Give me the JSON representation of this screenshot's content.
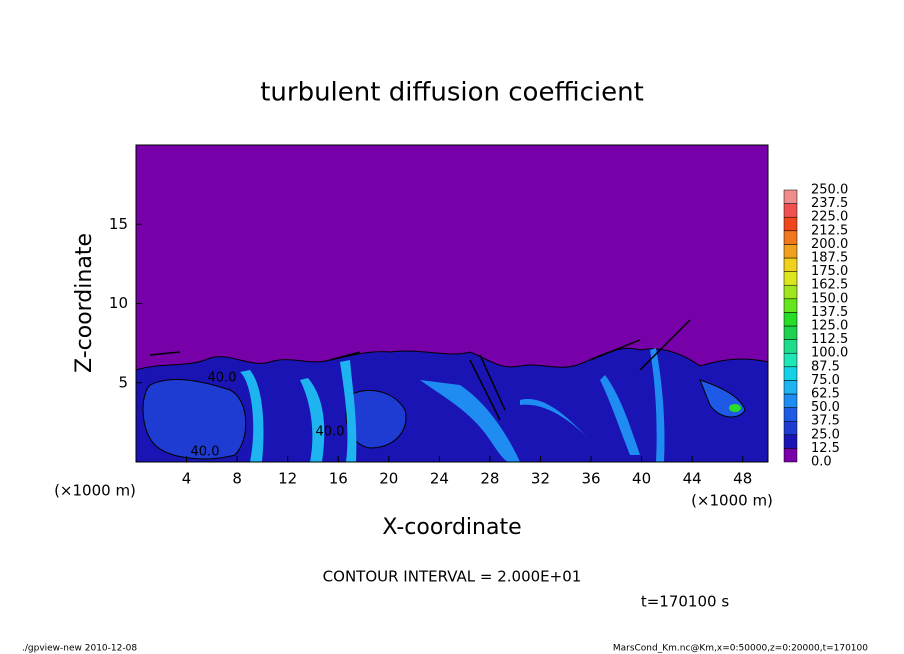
{
  "chart_data": {
    "type": "contour",
    "title": "turbulent diffusion coefficient",
    "x_label": "X-coordinate",
    "y_label": "Z-coordinate",
    "x_unit": "(×1000 m)",
    "y_unit": "(×1000 m)",
    "xlim": [
      0,
      50
    ],
    "ylim": [
      0,
      20
    ],
    "xticks": [
      4,
      8,
      12,
      16,
      20,
      24,
      28,
      32,
      36,
      40,
      44,
      48
    ],
    "yticks": [
      5,
      10,
      15
    ],
    "levels": [
      {
        "value": 0,
        "label": "0.0"
      },
      {
        "value": 12.5,
        "label": "12.5"
      },
      {
        "value": 25,
        "label": "25.0"
      },
      {
        "value": 37.5,
        "label": "37.5"
      },
      {
        "value": 50,
        "label": "50.0"
      },
      {
        "value": 62.5,
        "label": "62.5"
      },
      {
        "value": 75,
        "label": "75.0"
      },
      {
        "value": 87.5,
        "label": "87.5"
      },
      {
        "value": 100,
        "label": "100.0"
      },
      {
        "value": 112.5,
        "label": "112.5"
      },
      {
        "value": 125,
        "label": "125.0"
      },
      {
        "value": 137.5,
        "label": "137.5"
      },
      {
        "value": 150,
        "label": "150.0"
      },
      {
        "value": 162.5,
        "label": "162.5"
      },
      {
        "value": 175,
        "label": "175.0"
      },
      {
        "value": 187.5,
        "label": "187.5"
      },
      {
        "value": 200,
        "label": "200.0"
      },
      {
        "value": 212.5,
        "label": "212.5"
      },
      {
        "value": 225,
        "label": "225.0"
      },
      {
        "value": 237.5,
        "label": "237.5"
      },
      {
        "value": 250,
        "label": "250.0"
      }
    ],
    "colors": [
      "#7800a8",
      "#1a14b4",
      "#1e3cd2",
      "#1e5ae6",
      "#1e8cf0",
      "#1eb4f0",
      "#14d2e6",
      "#1ee6b4",
      "#1edc8c",
      "#1ed250",
      "#28dc28",
      "#64e61e",
      "#a0e61e",
      "#dce61e",
      "#f0d21e",
      "#f0a01e",
      "#f0781e",
      "#f0461e",
      "#f05050",
      "#f08c8c"
    ],
    "contour_labels": [
      {
        "value": 40,
        "label": "40.0"
      },
      {
        "value": 40,
        "label": "40.0"
      },
      {
        "value": 40,
        "label": "40.0"
      }
    ],
    "contour_interval": "CONTOUR INTERVAL = 2.000E+01",
    "time_label": "t=170100 s",
    "footer_left": "./gpview-new  2010-12-08",
    "footer_right": "MarsCond_Km.nc@Km,x=0:50000,z=0:20000,t=170100"
  }
}
